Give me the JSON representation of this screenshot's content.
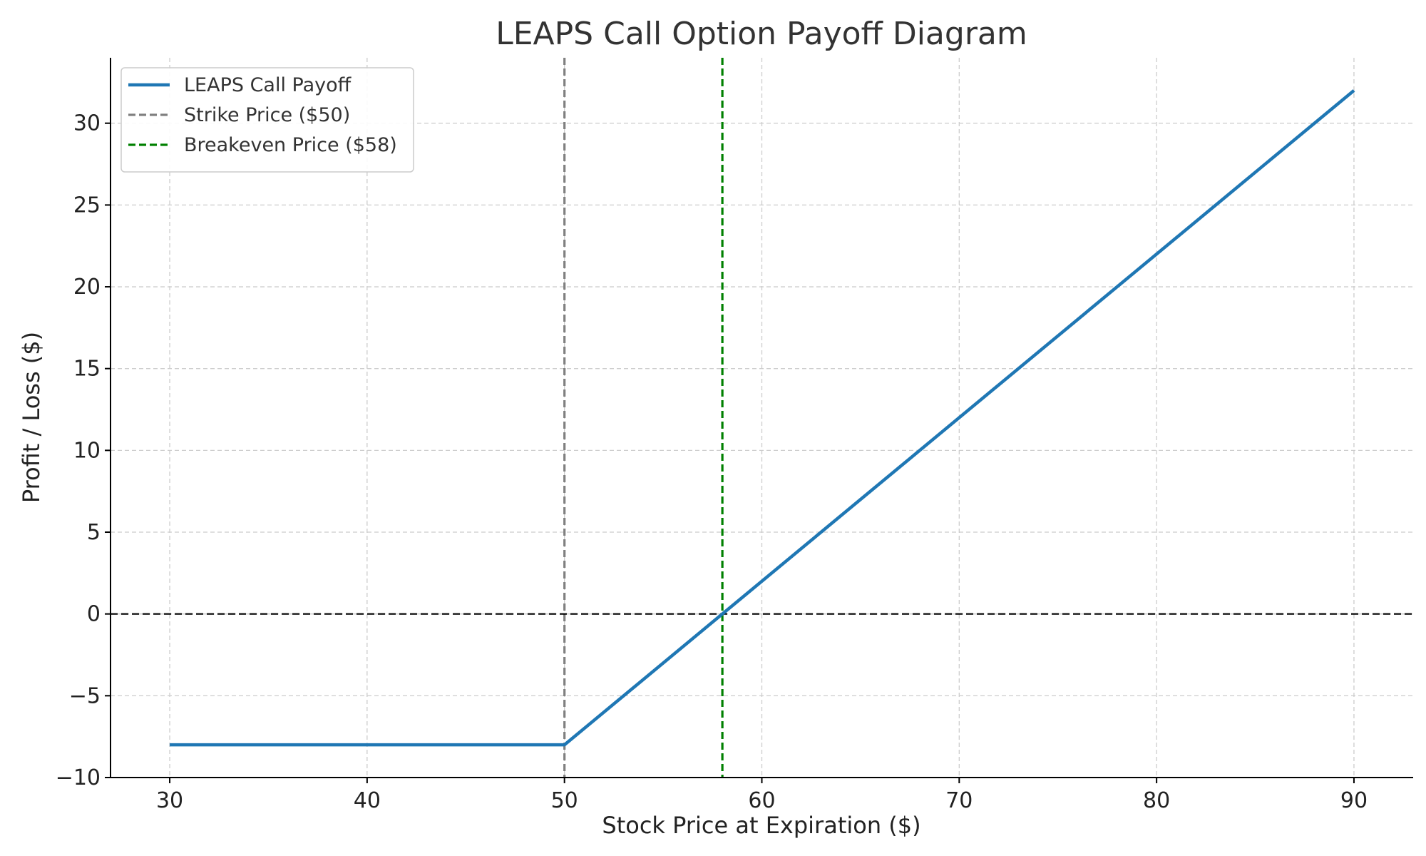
{
  "chart_data": {
    "type": "line",
    "title": "LEAPS Call Option Payoff Diagram",
    "xlabel": "Stock Price at Expiration ($)",
    "ylabel": "Profit / Loss ($)",
    "xlim": [
      27,
      93
    ],
    "ylim": [
      -10,
      34
    ],
    "xticks": [
      30,
      40,
      50,
      60,
      70,
      80,
      90
    ],
    "yticks": [
      -10,
      -5,
      0,
      5,
      10,
      15,
      20,
      25,
      30
    ],
    "xtick_labels": [
      "30",
      "40",
      "50",
      "60",
      "70",
      "80",
      "90"
    ],
    "ytick_labels": [
      "−10",
      "−5",
      "0",
      "5",
      "10",
      "15",
      "20",
      "25",
      "30"
    ],
    "grid": true,
    "legend_position": "top-left",
    "series": [
      {
        "name": "LEAPS Call Payoff",
        "color": "#1f77b4",
        "style": "solid",
        "x": [
          30,
          50,
          90
        ],
        "y": [
          -8,
          -8,
          32
        ]
      }
    ],
    "reference_lines": [
      {
        "name": "Strike Price ($50)",
        "orientation": "vertical",
        "value": 50,
        "color": "#808080",
        "style": "dashed",
        "in_legend": true
      },
      {
        "name": "Breakeven Price ($58)",
        "orientation": "vertical",
        "value": 58,
        "color": "#008000",
        "style": "dashed",
        "in_legend": true
      },
      {
        "name": "",
        "orientation": "horizontal",
        "value": 0,
        "color": "#000000",
        "style": "dashed",
        "in_legend": false
      }
    ]
  }
}
